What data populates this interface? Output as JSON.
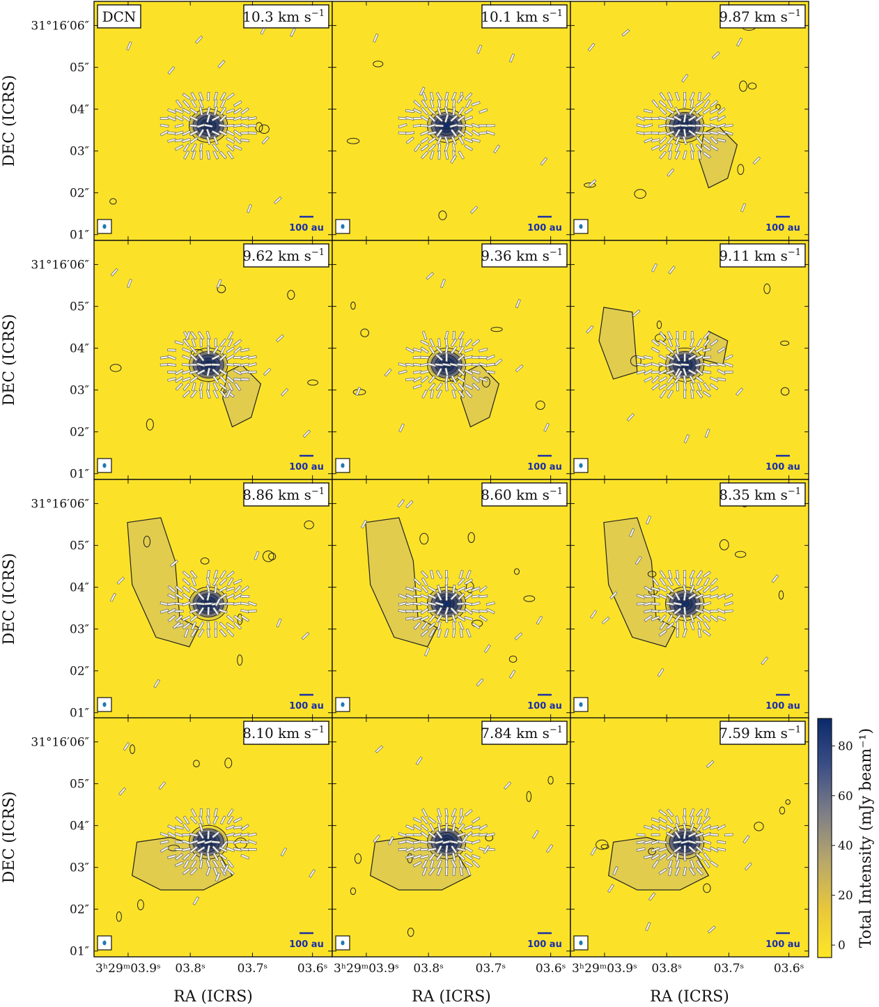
{
  "figure": {
    "molecule_label": "DCN",
    "scalebar_label": "100 au",
    "ylabel": "DEC (ICRS)",
    "xlabel": "RA (ICRS)",
    "colorbar": {
      "label": "Total Intensity (mJy beam⁻¹)",
      "ticks": [
        "0",
        "20",
        "40",
        "60",
        "80"
      ],
      "range": [
        -5,
        91
      ],
      "colors": [
        "#fde725",
        "#e8c83a",
        "#b9a86a",
        "#7f7f86",
        "#3c4f86",
        "#0b2a6b"
      ]
    }
  },
  "chart_data": {
    "type": "heatmap",
    "description_axes": {
      "xlabel": "RA (ICRS)",
      "ylabel": "DEC (ICRS)",
      "yticks": [
        "31°16′06″",
        "05″",
        "04″",
        "03″",
        "02″",
        "01″"
      ],
      "xticks": [
        "3ʰ29ᵐ03.9ˢ",
        "03.8ˢ",
        "03.7ˢ",
        "03.6ˢ"
      ]
    },
    "channels": [
      {
        "velocity": "10.3 km s⁻¹",
        "emission": "compact"
      },
      {
        "velocity": "10.1 km s⁻¹",
        "emission": "compact"
      },
      {
        "velocity": "9.87 km s⁻¹",
        "emission": "southwest-tail"
      },
      {
        "velocity": "9.62 km s⁻¹",
        "emission": "southwest-tail"
      },
      {
        "velocity": "9.36 km s⁻¹",
        "emission": "southwest-tail"
      },
      {
        "velocity": "9.11 km s⁻¹",
        "emission": "scattered"
      },
      {
        "velocity": "8.86 km s⁻¹",
        "emission": "east-arc"
      },
      {
        "velocity": "8.60 km s⁻¹",
        "emission": "east-arc"
      },
      {
        "velocity": "8.35 km s⁻¹",
        "emission": "east-arc"
      },
      {
        "velocity": "8.10 km s⁻¹",
        "emission": "southeast-streamer"
      },
      {
        "velocity": "7.84 km s⁻¹",
        "emission": "southeast-streamer"
      },
      {
        "velocity": "7.59 km s⁻¹",
        "emission": "southeast-streamer"
      }
    ],
    "peak_intensity_mJy_per_beam": 90,
    "contours": true,
    "polarization_vectors": true
  }
}
